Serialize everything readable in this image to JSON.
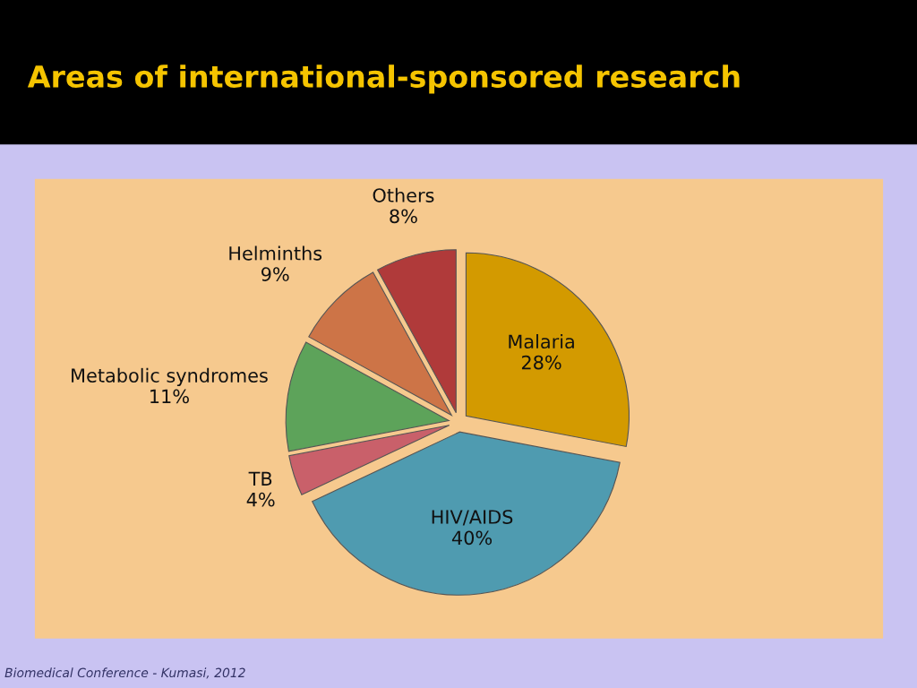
{
  "chart_data": {
    "type": "pie",
    "title": "Areas of international-sponsored research",
    "categories": [
      "Malaria",
      "HIV/AIDS",
      "TB",
      "Metabolic syndromes",
      "Helminths",
      "Others"
    ],
    "values": [
      28,
      40,
      4,
      11,
      9,
      8
    ],
    "value_labels": [
      "28%",
      "40%",
      "4%",
      "11%",
      "9%",
      "8%"
    ],
    "colors": [
      "#d39a00",
      "#4f9bb0",
      "#c9606a",
      "#5da35a",
      "#cd7447",
      "#b03a3a"
    ],
    "annotations": [
      "Biomedical Conference - Kumasi, 2012"
    ]
  }
}
